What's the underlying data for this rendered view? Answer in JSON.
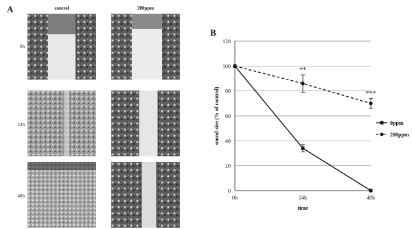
{
  "panel_a": {
    "letter": "A",
    "columns": [
      "control",
      "200ppm"
    ],
    "rows": [
      "0h",
      "24h",
      "48h"
    ]
  },
  "panel_b": {
    "letter": "B"
  },
  "chart_data": {
    "type": "line",
    "title": "",
    "xlabel": "time",
    "ylabel": "sound size (% of control)",
    "categories": [
      "0h",
      "24h",
      "48h"
    ],
    "ylim": [
      0,
      120
    ],
    "yticks": [
      0,
      20,
      40,
      60,
      80,
      100,
      120
    ],
    "grid": true,
    "legend_position": "right",
    "series": [
      {
        "name": "0ppm",
        "values": [
          100,
          34,
          0
        ],
        "errors": [
          0,
          3,
          0
        ],
        "style": "solid"
      },
      {
        "name": "200ppm",
        "values": [
          100,
          86,
          70
        ],
        "errors": [
          0,
          7,
          4
        ],
        "style": "dashed"
      }
    ],
    "annotations": [
      {
        "category": "24h",
        "text": "**"
      },
      {
        "category": "48h",
        "text": "***"
      }
    ]
  }
}
